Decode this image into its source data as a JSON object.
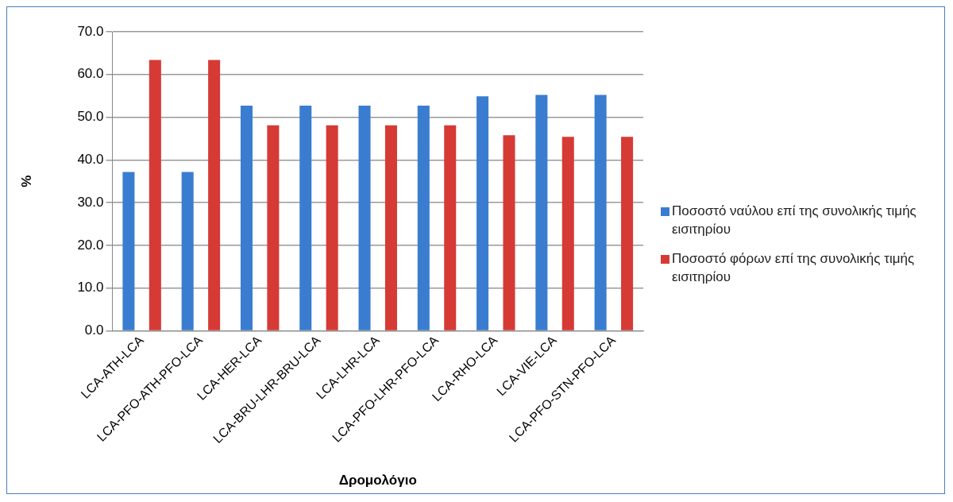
{
  "chart_data": {
    "type": "bar",
    "xlabel": "Δρομολόγιο",
    "ylabel": "%",
    "categories": [
      "LCA-ATH-LCA",
      "LCA-PFO-ATH-PFO-LCA",
      "LCA-HER-LCA",
      "LCA-BRU-LHR-BRU-LCA",
      "LCA-LHR-LCA",
      "LCA-PFO-LHR-PFO-LCA",
      "LCA-RHO-LCA",
      "LCA-VIE-LCA",
      "LCA-PFO-STN-PFO-LCA"
    ],
    "series": [
      {
        "name": "Ποσοστό ναύλου επί της συνολικής τιμής εισιτηρίου",
        "color": "#3a7dd0",
        "values": [
          37.2,
          37.2,
          52.7,
          52.7,
          52.7,
          52.7,
          54.9,
          55.2,
          55.2
        ]
      },
      {
        "name": "Ποσοστό φόρων επί της συνολικής τιμής εισιτηρίου",
        "color": "#d63a35",
        "values": [
          63.4,
          63.4,
          48.1,
          48.1,
          48.1,
          48.1,
          45.8,
          45.4,
          45.4
        ]
      }
    ],
    "ylim": [
      0,
      70
    ],
    "yticks": [
      {
        "value": 0,
        "label": "0.0"
      },
      {
        "value": 10,
        "label": "10.0"
      },
      {
        "value": 20,
        "label": "20.0"
      },
      {
        "value": 30,
        "label": "30.0"
      },
      {
        "value": 40,
        "label": "40.0"
      },
      {
        "value": 50,
        "label": "50.0"
      },
      {
        "value": 60,
        "label": "60.0"
      },
      {
        "value": 70,
        "label": "70.0"
      }
    ],
    "grid": "y",
    "legend": "right"
  }
}
